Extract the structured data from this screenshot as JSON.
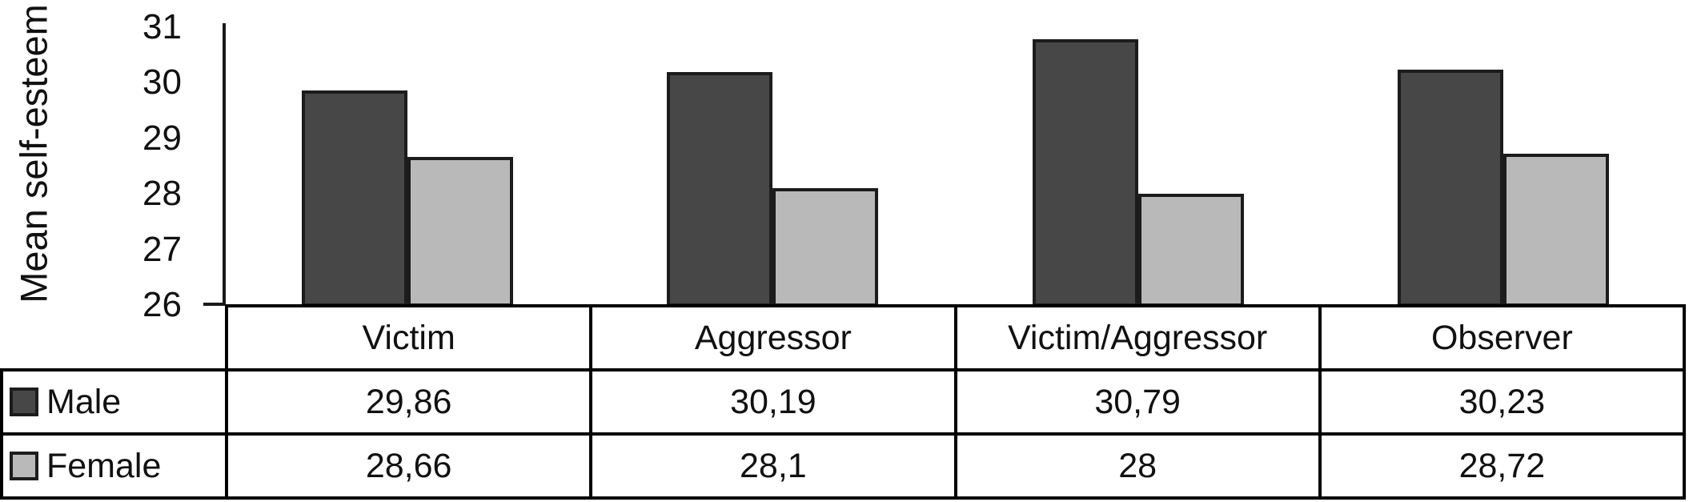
{
  "chart_data": {
    "type": "bar",
    "categories": [
      "Victim",
      "Aggressor",
      "Victim/Aggressor",
      "Observer"
    ],
    "series": [
      {
        "name": "Male",
        "values": [
          29.86,
          30.19,
          30.79,
          30.23
        ],
        "color": "#474747"
      },
      {
        "name": "Female",
        "values": [
          28.66,
          28.1,
          28.0,
          28.72
        ],
        "color": "#b9b9b9"
      }
    ],
    "value_labels": [
      [
        "29,86",
        "30,19",
        "30,79",
        "30,23"
      ],
      [
        "28,66",
        "28,1",
        "28",
        "28,72"
      ]
    ],
    "title": "",
    "xlabel": "",
    "ylabel": "Mean self-esteem",
    "ylim": [
      26,
      31
    ],
    "yticks": [
      26,
      27,
      28,
      29,
      30,
      31
    ],
    "grid": false,
    "legend_position": "table-left",
    "bar_border_color": "#1c1c1c",
    "table_border_color": "#000000"
  }
}
